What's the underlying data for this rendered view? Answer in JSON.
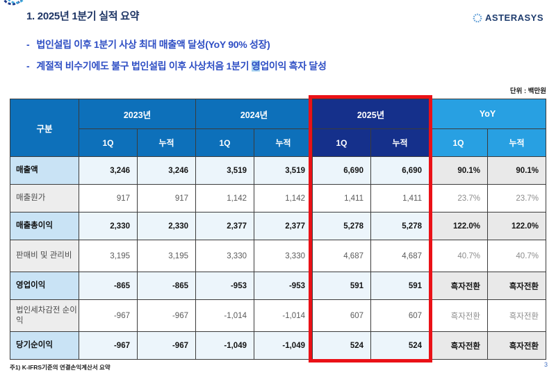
{
  "page": {
    "title": "1. 2025년 1분기 실적 요약",
    "unit_label": "단위 : 백만원",
    "footnote": "주1) K-IFRS기준의 연결손익계산서 요약",
    "page_number": "3"
  },
  "logo": {
    "text": "ASTERASYS"
  },
  "bullets": [
    {
      "dash": "-",
      "text": "법인설립 이후 1분기 사상 최대 매출액 달성(YoY 90% 성장)"
    },
    {
      "dash": "-",
      "pre": "계절적 비수기에도 불구 법인설립 이후 사상처음 1분기 ",
      "highlight": "영",
      "post": "업이익 흑자 달성"
    }
  ],
  "table": {
    "corner_header": "구분",
    "col_groups": [
      {
        "label": "2023년",
        "type": "normal"
      },
      {
        "label": "2024년",
        "type": "normal"
      },
      {
        "label": "2025년",
        "type": "highlight"
      },
      {
        "label": "YoY",
        "type": "yoy"
      }
    ],
    "sub_headers": [
      "1Q",
      "누적"
    ],
    "rows": [
      {
        "label": "매출액",
        "bold": true,
        "tall": false,
        "values": [
          "3,246",
          "3,246",
          "3,519",
          "3,519",
          "6,690",
          "6,690",
          "90.1%",
          "90.1%"
        ]
      },
      {
        "label": "매출원가",
        "bold": false,
        "tall": false,
        "values": [
          "917",
          "917",
          "1,142",
          "1,142",
          "1,411",
          "1,411",
          "23.7%",
          "23.7%"
        ]
      },
      {
        "label": "매출총이익",
        "bold": true,
        "tall": false,
        "values": [
          "2,330",
          "2,330",
          "2,377",
          "2,377",
          "5,278",
          "5,278",
          "122.0%",
          "122.0%"
        ]
      },
      {
        "label": "판매비 및 관리비",
        "bold": false,
        "tall": true,
        "values": [
          "3,195",
          "3,195",
          "3,330",
          "3,330",
          "4,687",
          "4,687",
          "40.7%",
          "40.7%"
        ]
      },
      {
        "label": "영업이익",
        "bold": true,
        "tall": false,
        "values": [
          "-865",
          "-865",
          "-953",
          "-953",
          "591",
          "591",
          "흑자전환",
          "흑자전환"
        ]
      },
      {
        "label": "법인세차감전 순이익",
        "bold": false,
        "tall": true,
        "values": [
          "-967",
          "-967",
          "-1,014",
          "-1,014",
          "607",
          "607",
          "흑자전환",
          "흑자전환"
        ]
      },
      {
        "label": "당기순이익",
        "bold": true,
        "tall": false,
        "values": [
          "-967",
          "-967",
          "-1,049",
          "-1,049",
          "524",
          "524",
          "흑자전환",
          "흑자전환"
        ]
      }
    ]
  },
  "colors": {
    "header_blue": "#0d70ba",
    "highlight_navy": "#15308b",
    "yoy_blue": "#28a0e2",
    "highlight_border_red": "#ea1117",
    "title_navy": "#1d3464",
    "bullet_blue": "#2e4ec4",
    "selection_blue": "#a9d4f0",
    "label_cell_blue": "#c9e3f5",
    "value_cell_blue": "#ecf5fb",
    "gray_cell": "#e9e9e9"
  }
}
